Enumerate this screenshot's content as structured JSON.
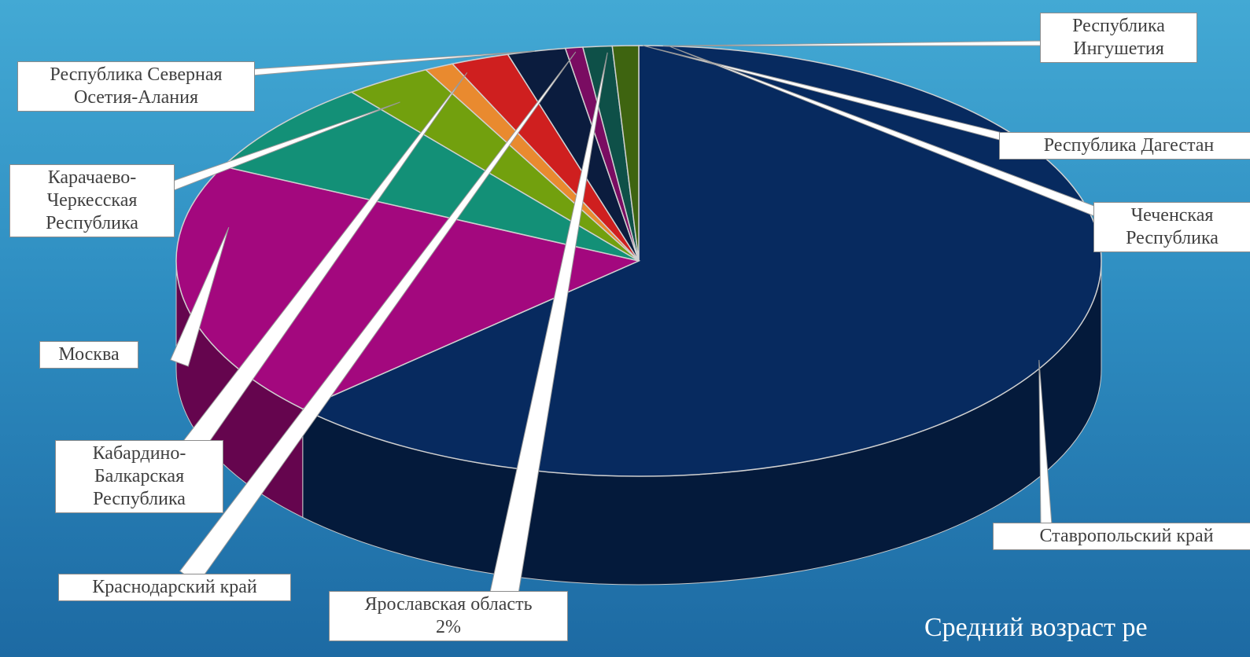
{
  "subtitle": "Средний возраст ре",
  "chart_data": {
    "type": "pie",
    "three_d": true,
    "title": "",
    "slices": [
      {
        "label": "Ставропольский край",
        "value": 62,
        "color": "#072a5f"
      },
      {
        "label": "Москва",
        "value": 19,
        "color": "#a3087e"
      },
      {
        "label": "Карачаево-Черкесская Республика",
        "value": 7,
        "color": "#139077"
      },
      {
        "label": "Кабардино-Балкарская Республика",
        "value": 3,
        "color": "#72a00e"
      },
      {
        "label": "Республика Северная Осетия-Алания",
        "value": 1,
        "color": "#e98a2f"
      },
      {
        "label": "Краснодарский край",
        "value": 2,
        "color": "#cf1f1f"
      },
      {
        "label": "Ярославская область",
        "value": 2,
        "color": "#0b1c3e",
        "value_label": "2%"
      },
      {
        "label": "Республика Дагестан",
        "value": 0.6,
        "color": "#7a0c62"
      },
      {
        "label": "Республика Ингушетия",
        "value": 1,
        "color": "#0e5048"
      },
      {
        "label": "Чеченская Республика",
        "value": 0.9,
        "color": "#3e6410"
      }
    ]
  }
}
